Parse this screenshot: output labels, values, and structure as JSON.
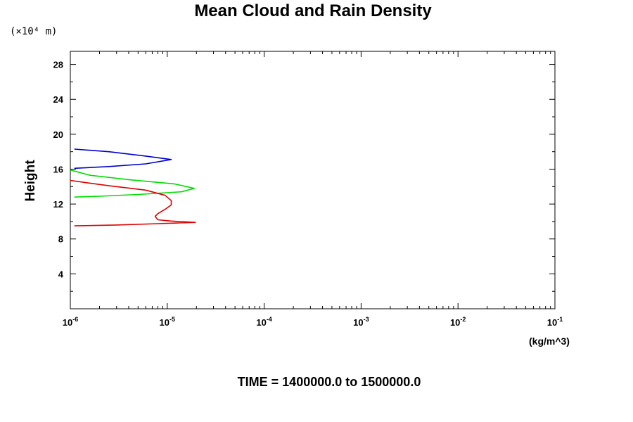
{
  "chart_data": {
    "type": "line",
    "title": "Mean Cloud and Rain Density",
    "ylabel": "Height",
    "y_scale_label": "(×10⁴ m)",
    "xunit": "(kg/m^3)",
    "footer": "TIME = 1400000.0 to 1500000.0",
    "xscale": "log",
    "xlim": [
      1e-06,
      0.1
    ],
    "ylim": [
      0,
      29.5
    ],
    "x_ticks": [
      {
        "base": "10",
        "exp": "-6",
        "value": 1e-06
      },
      {
        "base": "10",
        "exp": "-5",
        "value": 1e-05
      },
      {
        "base": "10",
        "exp": "-4",
        "value": 0.0001
      },
      {
        "base": "10",
        "exp": "-3",
        "value": 0.001
      },
      {
        "base": "10",
        "exp": "-2",
        "value": 0.01
      },
      {
        "base": "10",
        "exp": "-1",
        "value": 0.1
      }
    ],
    "y_ticks": [
      "4",
      "8",
      "12",
      "16",
      "20",
      "24",
      "28"
    ],
    "grid": false,
    "series": [
      {
        "color": "#0000cc",
        "points": [
          [
            1.1e-06,
            18.3
          ],
          [
            2.5e-06,
            18.0
          ],
          [
            6e-06,
            17.5
          ],
          [
            1.1e-05,
            17.1
          ],
          [
            6e-06,
            16.6
          ],
          [
            2.5e-06,
            16.3
          ],
          [
            1.1e-06,
            16.1
          ]
        ]
      },
      {
        "color": "#00dd00",
        "points": [
          [
            1e-06,
            15.9
          ],
          [
            1.6e-06,
            15.3
          ],
          [
            4e-06,
            14.8
          ],
          [
            1.2e-05,
            14.3
          ],
          [
            1.9e-05,
            13.8
          ],
          [
            1.4e-05,
            13.4
          ],
          [
            5e-06,
            13.1
          ],
          [
            2e-06,
            12.9
          ],
          [
            1.1e-06,
            12.8
          ]
        ]
      },
      {
        "color": "#dd0000",
        "points": [
          [
            1e-06,
            14.7
          ],
          [
            2.5e-06,
            14.1
          ],
          [
            6e-06,
            13.6
          ],
          [
            9.5e-06,
            13.0
          ],
          [
            1.1e-05,
            12.4
          ],
          [
            1.1e-05,
            11.9
          ],
          [
            9.5e-06,
            11.4
          ],
          [
            8e-06,
            10.9
          ],
          [
            7.5e-06,
            10.6
          ],
          [
            8e-06,
            10.2
          ],
          [
            1.1e-05,
            10.05
          ],
          [
            1.95e-05,
            9.9
          ],
          [
            8e-06,
            9.75
          ],
          [
            3e-06,
            9.6
          ],
          [
            1.1e-06,
            9.5
          ]
        ]
      }
    ]
  }
}
